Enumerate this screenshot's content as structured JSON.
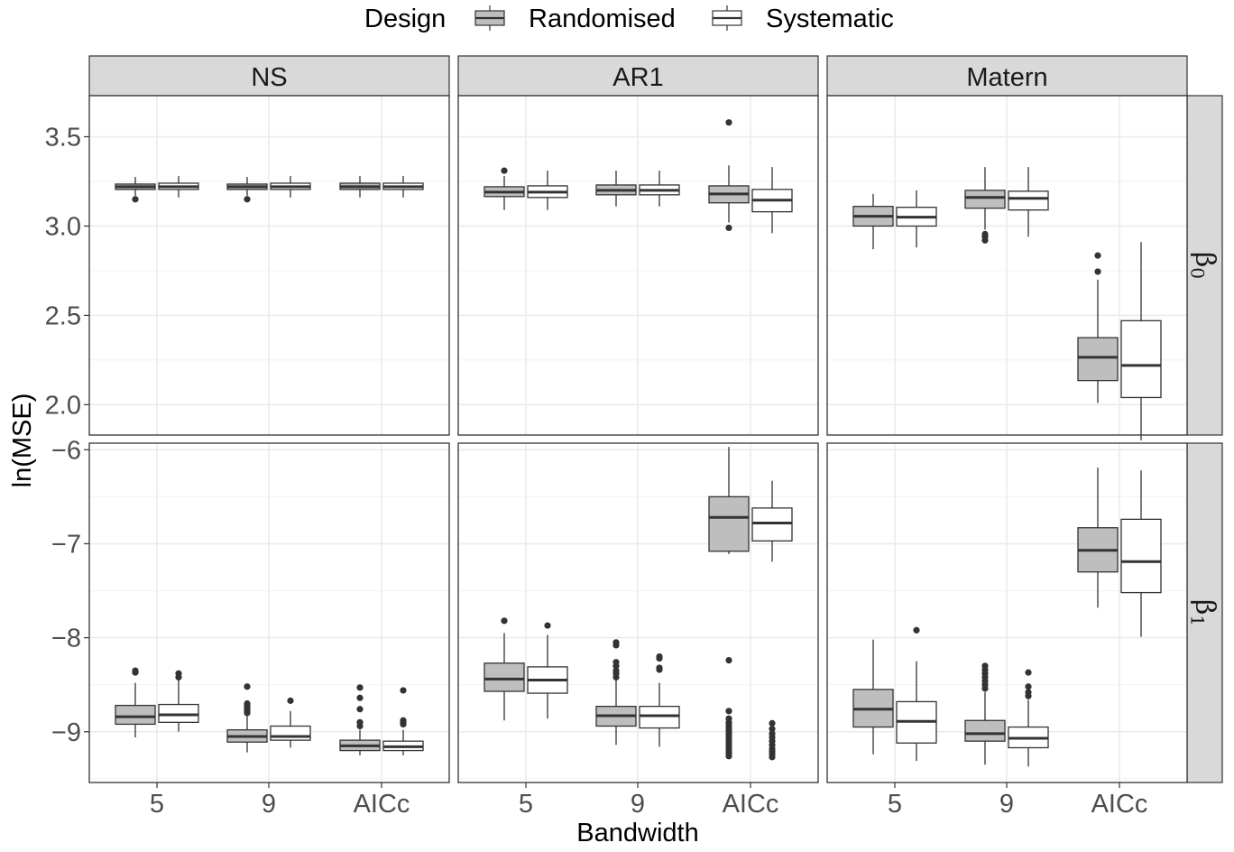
{
  "chart_data": {
    "type": "boxplot",
    "legend": {
      "title": "Design",
      "position": "top",
      "entries": [
        {
          "name": "Randomised",
          "fill": "#bebebe"
        },
        {
          "name": "Systematic",
          "fill": "#ffffff"
        }
      ]
    },
    "xlabel": "Bandwidth",
    "ylabel": "ln(MSE)",
    "categories": [
      "5",
      "9",
      "AICc"
    ],
    "columns": [
      "NS",
      "AR1",
      "Matern"
    ],
    "grid": true,
    "rows": [
      {
        "key": "b0",
        "label": "β",
        "subscript": "0",
        "ylim": [
          1.83,
          3.73
        ],
        "yticks": [
          2.0,
          2.5,
          3.0,
          3.5
        ],
        "yticklabels": [
          "2.0",
          "2.5",
          "3.0",
          "3.5"
        ]
      },
      {
        "key": "b1",
        "label": "β",
        "subscript": "1",
        "ylim": [
          -9.54,
          -5.93
        ],
        "yticks": [
          -9,
          -8,
          -7,
          -6
        ],
        "yticklabels": [
          "−9",
          "−8",
          "−7",
          "−6"
        ]
      }
    ],
    "panels": [
      {
        "row": "b0",
        "col": "NS",
        "boxes": [
          {
            "category": "5",
            "design": "Randomised",
            "lower_whisker": 3.17,
            "q1": 3.205,
            "median": 3.22,
            "q3": 3.235,
            "upper_whisker": 3.275,
            "outliers": [
              3.15
            ]
          },
          {
            "category": "5",
            "design": "Systematic",
            "lower_whisker": 3.16,
            "q1": 3.205,
            "median": 3.22,
            "q3": 3.24,
            "upper_whisker": 3.28,
            "outliers": []
          },
          {
            "category": "9",
            "design": "Randomised",
            "lower_whisker": 3.17,
            "q1": 3.205,
            "median": 3.22,
            "q3": 3.235,
            "upper_whisker": 3.275,
            "outliers": [
              3.15
            ]
          },
          {
            "category": "9",
            "design": "Systematic",
            "lower_whisker": 3.16,
            "q1": 3.205,
            "median": 3.22,
            "q3": 3.24,
            "upper_whisker": 3.28,
            "outliers": []
          },
          {
            "category": "AICc",
            "design": "Randomised",
            "lower_whisker": 3.16,
            "q1": 3.205,
            "median": 3.22,
            "q3": 3.24,
            "upper_whisker": 3.28,
            "outliers": []
          },
          {
            "category": "AICc",
            "design": "Systematic",
            "lower_whisker": 3.16,
            "q1": 3.205,
            "median": 3.22,
            "q3": 3.24,
            "upper_whisker": 3.28,
            "outliers": []
          }
        ]
      },
      {
        "row": "b0",
        "col": "AR1",
        "boxes": [
          {
            "category": "5",
            "design": "Randomised",
            "lower_whisker": 3.09,
            "q1": 3.165,
            "median": 3.19,
            "q3": 3.22,
            "upper_whisker": 3.28,
            "outliers": [
              3.31
            ]
          },
          {
            "category": "5",
            "design": "Systematic",
            "lower_whisker": 3.09,
            "q1": 3.16,
            "median": 3.19,
            "q3": 3.225,
            "upper_whisker": 3.31,
            "outliers": []
          },
          {
            "category": "9",
            "design": "Randomised",
            "lower_whisker": 3.11,
            "q1": 3.175,
            "median": 3.2,
            "q3": 3.23,
            "upper_whisker": 3.31,
            "outliers": []
          },
          {
            "category": "9",
            "design": "Systematic",
            "lower_whisker": 3.11,
            "q1": 3.175,
            "median": 3.2,
            "q3": 3.23,
            "upper_whisker": 3.31,
            "outliers": []
          },
          {
            "category": "AICc",
            "design": "Randomised",
            "lower_whisker": 3.02,
            "q1": 3.13,
            "median": 3.18,
            "q3": 3.225,
            "upper_whisker": 3.34,
            "outliers": [
              2.99,
              3.58
            ]
          },
          {
            "category": "AICc",
            "design": "Systematic",
            "lower_whisker": 2.96,
            "q1": 3.08,
            "median": 3.145,
            "q3": 3.205,
            "upper_whisker": 3.33,
            "outliers": []
          }
        ]
      },
      {
        "row": "b0",
        "col": "Matern",
        "boxes": [
          {
            "category": "5",
            "design": "Randomised",
            "lower_whisker": 2.87,
            "q1": 3.0,
            "median": 3.055,
            "q3": 3.11,
            "upper_whisker": 3.18,
            "outliers": []
          },
          {
            "category": "5",
            "design": "Systematic",
            "lower_whisker": 2.88,
            "q1": 3.0,
            "median": 3.05,
            "q3": 3.105,
            "upper_whisker": 3.2,
            "outliers": []
          },
          {
            "category": "9",
            "design": "Randomised",
            "lower_whisker": 2.98,
            "q1": 3.1,
            "median": 3.16,
            "q3": 3.2,
            "upper_whisker": 3.33,
            "outliers": [
              2.92,
              2.94,
              2.955
            ]
          },
          {
            "category": "9",
            "design": "Systematic",
            "lower_whisker": 2.94,
            "q1": 3.09,
            "median": 3.155,
            "q3": 3.195,
            "upper_whisker": 3.33,
            "outliers": []
          },
          {
            "category": "AICc",
            "design": "Randomised",
            "lower_whisker": 2.01,
            "q1": 2.135,
            "median": 2.265,
            "q3": 2.375,
            "upper_whisker": 2.7,
            "outliers": [
              2.745,
              2.835
            ]
          },
          {
            "category": "AICc",
            "design": "Systematic",
            "lower_whisker": 1.8,
            "q1": 2.04,
            "median": 2.22,
            "q3": 2.47,
            "upper_whisker": 2.91,
            "outliers": []
          }
        ]
      },
      {
        "row": "b1",
        "col": "NS",
        "boxes": [
          {
            "category": "5",
            "design": "Randomised",
            "lower_whisker": -9.06,
            "q1": -8.92,
            "median": -8.84,
            "q3": -8.72,
            "upper_whisker": -8.48,
            "outliers": [
              -8.37,
              -8.35
            ]
          },
          {
            "category": "5",
            "design": "Systematic",
            "lower_whisker": -9.0,
            "q1": -8.9,
            "median": -8.82,
            "q3": -8.71,
            "upper_whisker": -8.45,
            "outliers": [
              -8.42,
              -8.38
            ]
          },
          {
            "category": "9",
            "design": "Randomised",
            "lower_whisker": -9.22,
            "q1": -9.11,
            "median": -9.05,
            "q3": -8.98,
            "upper_whisker": -8.82,
            "outliers": [
              -8.8,
              -8.78,
              -8.76,
              -8.74,
              -8.72,
              -8.7,
              -8.52
            ]
          },
          {
            "category": "9",
            "design": "Systematic",
            "lower_whisker": -9.17,
            "q1": -9.09,
            "median": -9.05,
            "q3": -8.94,
            "upper_whisker": -8.78,
            "outliers": [
              -8.67
            ]
          },
          {
            "category": "AICc",
            "design": "Randomised",
            "lower_whisker": -9.25,
            "q1": -9.2,
            "median": -9.15,
            "q3": -9.09,
            "upper_whisker": -8.98,
            "outliers": [
              -8.94,
              -8.9,
              -8.76,
              -8.64,
              -8.53
            ]
          },
          {
            "category": "AICc",
            "design": "Systematic",
            "lower_whisker": -9.25,
            "q1": -9.2,
            "median": -9.16,
            "q3": -9.1,
            "upper_whisker": -8.98,
            "outliers": [
              -8.92,
              -8.9,
              -8.88,
              -8.56
            ]
          }
        ]
      },
      {
        "row": "b1",
        "col": "AR1",
        "boxes": [
          {
            "category": "5",
            "design": "Randomised",
            "lower_whisker": -8.88,
            "q1": -8.57,
            "median": -8.44,
            "q3": -8.27,
            "upper_whisker": -7.95,
            "outliers": [
              -7.82
            ]
          },
          {
            "category": "5",
            "design": "Systematic",
            "lower_whisker": -8.86,
            "q1": -8.59,
            "median": -8.45,
            "q3": -8.31,
            "upper_whisker": -7.97,
            "outliers": [
              -7.87
            ]
          },
          {
            "category": "9",
            "design": "Randomised",
            "lower_whisker": -9.14,
            "q1": -8.94,
            "median": -8.83,
            "q3": -8.73,
            "upper_whisker": -8.45,
            "outliers": [
              -8.42,
              -8.38,
              -8.35,
              -8.3,
              -8.26,
              -8.08,
              -8.05
            ]
          },
          {
            "category": "9",
            "design": "Systematic",
            "lower_whisker": -9.16,
            "q1": -8.96,
            "median": -8.83,
            "q3": -8.73,
            "upper_whisker": -8.48,
            "outliers": [
              -8.34,
              -8.32,
              -8.22,
              -8.2
            ]
          },
          {
            "category": "AICc",
            "design": "Randomised",
            "lower_whisker": -7.11,
            "q1": -7.08,
            "median": -6.72,
            "q3": -6.5,
            "upper_whisker": -5.97,
            "outliers": [
              -9.26,
              -9.23,
              -9.2,
              -9.17,
              -9.14,
              -9.11,
              -9.08,
              -9.05,
              -9.02,
              -8.99,
              -8.96,
              -8.93,
              -8.9,
              -8.86,
              -8.78,
              -8.24
            ]
          },
          {
            "category": "AICc",
            "design": "Systematic",
            "lower_whisker": -7.19,
            "q1": -6.97,
            "median": -6.78,
            "q3": -6.62,
            "upper_whisker": -6.33,
            "outliers": [
              -9.27,
              -9.24,
              -9.21,
              -9.18,
              -9.14,
              -9.1,
              -9.06,
              -9.02,
              -8.97,
              -8.91
            ]
          }
        ]
      },
      {
        "row": "b1",
        "col": "Matern",
        "boxes": [
          {
            "category": "5",
            "design": "Randomised",
            "lower_whisker": -9.24,
            "q1": -8.95,
            "median": -8.76,
            "q3": -8.55,
            "upper_whisker": -8.02,
            "outliers": []
          },
          {
            "category": "5",
            "design": "Systematic",
            "lower_whisker": -9.31,
            "q1": -9.12,
            "median": -8.89,
            "q3": -8.68,
            "upper_whisker": -8.25,
            "outliers": [
              -7.92
            ]
          },
          {
            "category": "9",
            "design": "Randomised",
            "lower_whisker": -9.35,
            "q1": -9.1,
            "median": -9.02,
            "q3": -8.88,
            "upper_whisker": -8.58,
            "outliers": [
              -8.54,
              -8.5,
              -8.46,
              -8.42,
              -8.38,
              -8.34,
              -8.3
            ]
          },
          {
            "category": "9",
            "design": "Systematic",
            "lower_whisker": -9.37,
            "q1": -9.17,
            "median": -9.07,
            "q3": -8.95,
            "upper_whisker": -8.66,
            "outliers": [
              -8.62,
              -8.58,
              -8.52,
              -8.37
            ]
          },
          {
            "category": "AICc",
            "design": "Randomised",
            "lower_whisker": -7.68,
            "q1": -7.3,
            "median": -7.07,
            "q3": -6.83,
            "upper_whisker": -6.19,
            "outliers": []
          },
          {
            "category": "AICc",
            "design": "Systematic",
            "lower_whisker": -7.99,
            "q1": -7.52,
            "median": -7.19,
            "q3": -6.74,
            "upper_whisker": -6.22,
            "outliers": []
          }
        ]
      }
    ]
  }
}
